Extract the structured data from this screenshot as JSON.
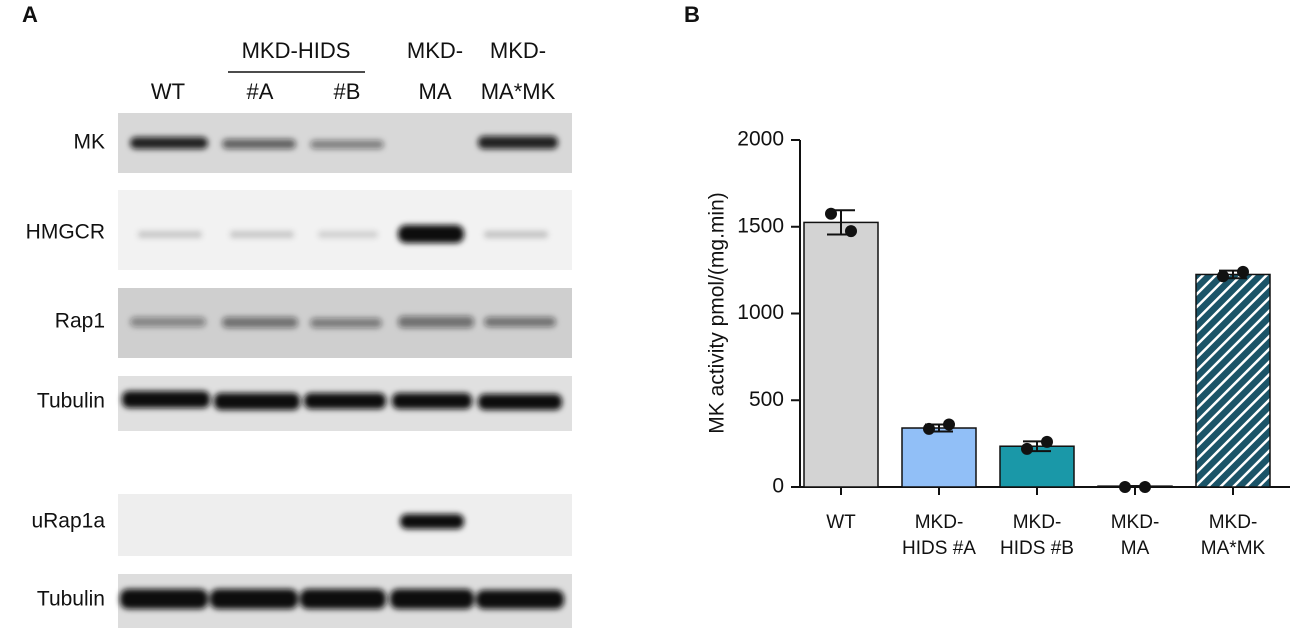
{
  "panel_a": {
    "label": "A",
    "header_row1": [
      "MKD-HIDS",
      "MKD-",
      "MKD-"
    ],
    "header_row2": [
      "WT",
      "#A",
      "#B",
      "MA",
      "MA*MK"
    ],
    "row_labels": [
      "MK",
      "HMGCR",
      "Rap1",
      "Tubulin",
      "uRap1a",
      "Tubulin"
    ]
  },
  "chart_data": {
    "type": "bar",
    "panel_label": "B",
    "y_label": "MK activity pmol/(mg.min)",
    "categories": [
      [
        "WT"
      ],
      [
        "MKD-",
        "HIDS #A"
      ],
      [
        "MKD-",
        "HIDS #B"
      ],
      [
        "MKD-",
        "MA"
      ],
      [
        "MKD-",
        "MA*MK"
      ]
    ],
    "values": [
      1525,
      340,
      235,
      5,
      1225
    ],
    "errors": [
      70,
      20,
      28,
      0,
      22
    ],
    "points": [
      [
        1575,
        1475
      ],
      [
        335,
        360
      ],
      [
        220,
        260
      ],
      [
        0,
        0
      ],
      [
        1215,
        1240
      ]
    ],
    "colors": [
      "#d3d3d3",
      "#91bff7",
      "#1a98a8",
      "#d3d3d3",
      "#1b5468"
    ],
    "hatch": [
      false,
      false,
      false,
      false,
      true
    ],
    "ylim": [
      0,
      2000
    ],
    "yticks": [
      0,
      500,
      1000,
      1500,
      2000
    ]
  }
}
